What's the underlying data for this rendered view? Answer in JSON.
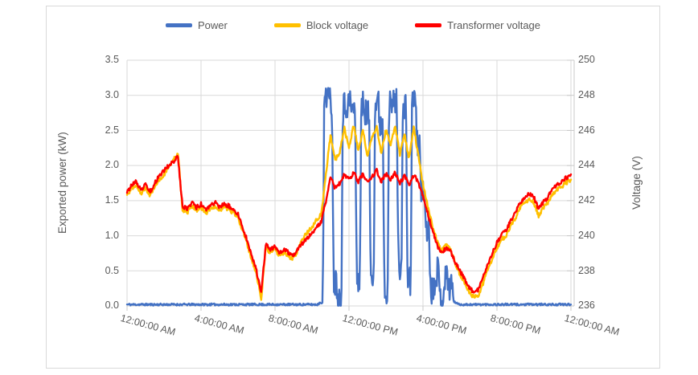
{
  "chart": {
    "legend": [
      {
        "label": "Power",
        "color": "#4472C4"
      },
      {
        "label": "Block voltage",
        "color": "#FFC000"
      },
      {
        "label": "Transformer voltage",
        "color": "#FF0000"
      }
    ],
    "left_axis": {
      "title": "Exported power (kW)",
      "ticks": [
        "3.5",
        "3.0",
        "2.5",
        "2.0",
        "1.5",
        "1.0",
        "0.5",
        "0.0"
      ]
    },
    "right_axis": {
      "title": "Voltage (V)",
      "ticks": [
        "250",
        "248",
        "246",
        "244",
        "242",
        "240",
        "238",
        "236"
      ]
    },
    "x_axis": {
      "ticks": [
        "12:00:00 AM",
        "4:00:00 AM",
        "8:00:00 AM",
        "12:00:00 PM",
        "4:00:00 PM",
        "8:00:00 PM",
        "12:00:00 AM"
      ]
    },
    "colors": {
      "grid": "#D9D9D9",
      "frame_border": "#D9D9D9",
      "axis_text": "#595959",
      "background": "#FFFFFF"
    }
  },
  "chart_data": {
    "type": "line",
    "title": "",
    "x_unit": "hours_of_day",
    "legend_position": "top",
    "grid": true,
    "left_axis": {
      "label": "Exported power (kW)",
      "range": [
        0,
        3.5
      ],
      "tick_step": 0.5
    },
    "right_axis": {
      "label": "Voltage (V)",
      "range": [
        236,
        250
      ],
      "tick_step": 2
    },
    "x_tick_labels": [
      "12:00:00 AM",
      "4:00:00 AM",
      "8:00:00 AM",
      "12:00:00 PM",
      "4:00:00 PM",
      "8:00:00 PM",
      "12:00:00 AM"
    ],
    "x_tick_hours": [
      0,
      4,
      8,
      12,
      16,
      20,
      24
    ],
    "x": [
      0,
      0.25,
      0.5,
      0.75,
      1,
      1.25,
      1.5,
      1.75,
      2,
      2.25,
      2.5,
      2.75,
      3,
      3.25,
      3.5,
      3.75,
      4,
      4.25,
      4.5,
      4.75,
      5,
      5.25,
      5.5,
      5.75,
      6,
      6.25,
      6.5,
      6.75,
      7,
      7.25,
      7.5,
      7.75,
      8,
      8.25,
      8.5,
      8.75,
      9,
      9.25,
      9.5,
      9.75,
      10,
      10.25,
      10.5,
      10.75,
      11,
      11.25,
      11.5,
      11.75,
      12,
      12.25,
      12.5,
      12.75,
      13,
      13.25,
      13.5,
      13.75,
      14,
      14.25,
      14.5,
      14.75,
      15,
      15.25,
      15.5,
      15.75,
      16,
      16.25,
      16.5,
      16.75,
      17,
      17.25,
      17.5,
      17.75,
      18,
      18.25,
      18.5,
      18.75,
      19,
      19.25,
      19.5,
      19.75,
      20,
      20.25,
      20.5,
      20.75,
      21,
      21.25,
      21.5,
      21.75,
      22,
      22.25,
      22.5,
      22.75,
      23,
      23.25,
      23.5,
      23.75,
      24
    ],
    "series": [
      {
        "name": "Power",
        "axis": "left",
        "unit": "kW",
        "color": "#4472C4",
        "values": [
          0.02,
          0.02,
          0.02,
          0.02,
          0.02,
          0.02,
          0.02,
          0.02,
          0.02,
          0.02,
          0.02,
          0.02,
          0.02,
          0.02,
          0.02,
          0.02,
          0.02,
          0.02,
          0.02,
          0.02,
          0.02,
          0.02,
          0.02,
          0.02,
          0.02,
          0.02,
          0.02,
          0.02,
          0.02,
          0.02,
          0.02,
          0.02,
          0.02,
          0.02,
          0.02,
          0.02,
          0.02,
          0.02,
          0.02,
          0.02,
          0.02,
          0.02,
          0.05,
          3.05,
          2.9,
          0.35,
          0.1,
          2.85,
          2.9,
          2.8,
          0.4,
          2.85,
          2.75,
          0.5,
          2.9,
          2.6,
          0.25,
          2.85,
          2.9,
          0.6,
          2.8,
          0.35,
          3.0,
          2.3,
          1.6,
          1.1,
          0.25,
          0.5,
          0.12,
          0.4,
          0.3,
          0.05,
          0.02,
          0.02,
          0.02,
          0.02,
          0.02,
          0.02,
          0.02,
          0.02,
          0.02,
          0.02,
          0.02,
          0.02,
          0.02,
          0.02,
          0.02,
          0.02,
          0.02,
          0.02,
          0.02,
          0.02,
          0.02,
          0.02,
          0.02,
          0.02,
          0.02
        ]
      },
      {
        "name": "Block voltage",
        "axis": "right",
        "unit": "V",
        "color": "#FFC000",
        "values": [
          242.3,
          242.7,
          242.9,
          242.4,
          242.7,
          242.3,
          242.8,
          243.2,
          243.5,
          243.9,
          244.3,
          244.7,
          241.5,
          241.3,
          241.7,
          241.4,
          241.6,
          241.3,
          241.5,
          241.7,
          241.4,
          241.6,
          241.5,
          241.3,
          241.0,
          240.3,
          239.5,
          238.6,
          237.8,
          236.4,
          239.3,
          239.0,
          239.2,
          238.8,
          239.1,
          238.8,
          238.7,
          239.2,
          239.8,
          240.2,
          240.5,
          240.9,
          241.2,
          243.5,
          245.8,
          244.3,
          244.8,
          246.1,
          245.0,
          246.3,
          244.9,
          246.0,
          244.5,
          245.7,
          246.2,
          244.7,
          246.1,
          245.2,
          246.3,
          244.6,
          245.8,
          244.4,
          246.2,
          244.5,
          242.9,
          241.7,
          240.6,
          239.7,
          239.1,
          239.5,
          239.2,
          238.4,
          237.8,
          237.3,
          236.8,
          236.5,
          236.6,
          237.3,
          238.1,
          238.7,
          239.3,
          239.8,
          240.0,
          240.6,
          241.0,
          241.6,
          241.9,
          242.1,
          241.9,
          241.1,
          241.6,
          241.9,
          242.3,
          242.6,
          242.8,
          243.0,
          243.2
        ]
      },
      {
        "name": "Transformer voltage",
        "axis": "right",
        "unit": "V",
        "color": "#FF0000",
        "values": [
          242.5,
          242.9,
          243.1,
          242.6,
          242.9,
          242.5,
          243.0,
          243.4,
          243.7,
          244.0,
          244.2,
          244.5,
          241.7,
          241.5,
          241.9,
          241.6,
          241.8,
          241.5,
          241.7,
          241.9,
          241.6,
          241.8,
          241.7,
          241.5,
          241.2,
          240.5,
          239.7,
          238.8,
          238.0,
          236.7,
          239.5,
          239.2,
          239.4,
          239.0,
          239.3,
          239.0,
          238.9,
          239.3,
          239.6,
          239.9,
          240.2,
          240.5,
          240.8,
          242.0,
          243.3,
          242.7,
          243.0,
          243.5,
          243.2,
          243.6,
          243.1,
          243.5,
          243.0,
          243.4,
          243.7,
          243.1,
          243.5,
          243.2,
          243.6,
          243.0,
          243.4,
          242.9,
          243.5,
          243.0,
          242.2,
          241.3,
          240.4,
          239.5,
          239.0,
          239.3,
          239.1,
          238.5,
          238.0,
          237.5,
          237.0,
          236.8,
          236.9,
          237.6,
          238.4,
          239.0,
          239.6,
          240.1,
          240.3,
          240.9,
          241.3,
          241.9,
          242.2,
          242.4,
          242.2,
          241.5,
          241.9,
          242.2,
          242.6,
          242.9,
          243.1,
          243.3,
          243.5
        ]
      }
    ],
    "noise": {
      "voltage": 0.12,
      "power_active": 0.22,
      "power_floor": 0.015
    }
  }
}
